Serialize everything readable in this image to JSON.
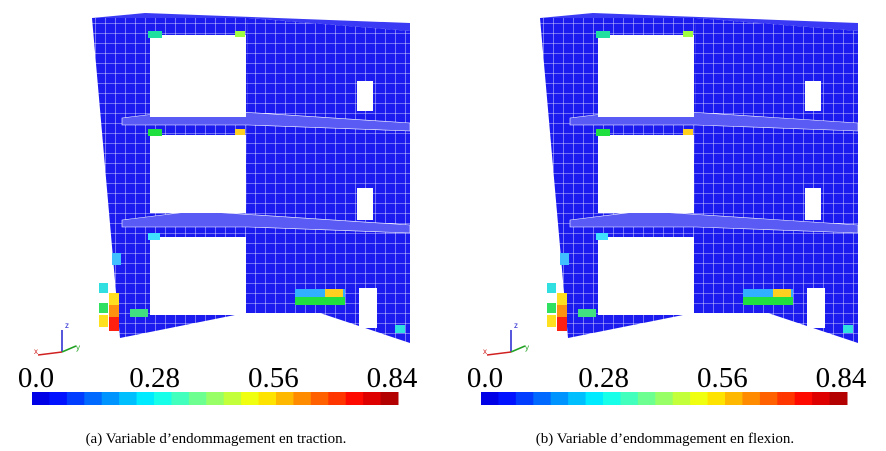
{
  "panels": [
    {
      "colorbar": {
        "ticks": [
          {
            "value": 0,
            "label": "0.0"
          },
          0.28,
          0.56,
          0.84
        ]
      },
      "axes": [
        "z",
        "x",
        "y"
      ],
      "caption": "(a) Variable d’endommagement en traction."
    },
    {
      "colorbar": {
        "ticks": [
          {
            "value": 0,
            "label": "0.0"
          },
          0.28,
          0.56,
          0.84
        ]
      },
      "axes": [
        "z",
        "x",
        "y"
      ],
      "caption": "(b) Variable d’endommagement en flexion."
    }
  ]
}
